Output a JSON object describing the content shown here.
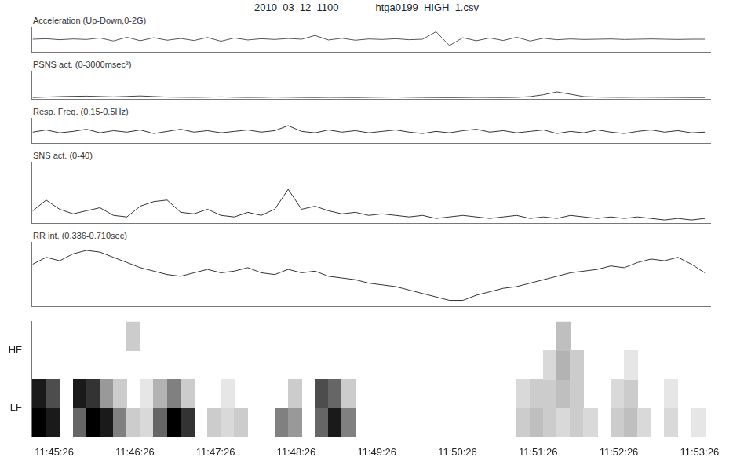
{
  "title": "2010_03_12_1100_         _htga0199_HIGH_1.csv",
  "chart_data": [
    {
      "type": "line",
      "title": "Acceleration (Up-Down,0-2G)",
      "color": "#555555",
      "tick_labels": false,
      "xlim": [
        42309,
        42814
      ],
      "ylim": [
        0,
        2
      ],
      "x": [
        42310,
        42320,
        42330,
        42340,
        42350,
        42360,
        42370,
        42380,
        42390,
        42400,
        42410,
        42420,
        42430,
        42440,
        42450,
        42460,
        42470,
        42480,
        42490,
        42500,
        42510,
        42520,
        42530,
        42540,
        42550,
        42560,
        42570,
        42580,
        42590,
        42600,
        42610,
        42620,
        42630,
        42640,
        42650,
        42660,
        42670,
        42680,
        42690,
        42700,
        42710,
        42720,
        42730,
        42740,
        42750,
        42760,
        42770,
        42780,
        42790,
        42800,
        42810
      ],
      "values": [
        1.0,
        1.04,
        0.96,
        1.02,
        0.98,
        1.1,
        0.86,
        1.16,
        0.88,
        1.12,
        0.92,
        1.06,
        0.9,
        1.14,
        0.84,
        1.1,
        0.94,
        1.04,
        0.98,
        1.06,
        1.0,
        1.3,
        0.94,
        1.08,
        0.92,
        1.02,
        0.98,
        1.04,
        0.96,
        1.0,
        1.6,
        0.5,
        1.12,
        0.88,
        1.1,
        0.9,
        1.16,
        0.86,
        1.08,
        0.96,
        1.02,
        0.98,
        1.0,
        1.02,
        0.98,
        1.0,
        1.02,
        1.0,
        0.98,
        1.0,
        1.0
      ]
    },
    {
      "type": "line",
      "title": "PSNS act. (0-3000msec²)",
      "color": "#444444",
      "tick_labels": false,
      "xlim": [
        42309,
        42814
      ],
      "ylim": [
        0,
        3000
      ],
      "x": [
        42310,
        42320,
        42330,
        42340,
        42350,
        42360,
        42370,
        42380,
        42390,
        42400,
        42410,
        42420,
        42430,
        42440,
        42450,
        42460,
        42470,
        42480,
        42490,
        42500,
        42510,
        42520,
        42530,
        42540,
        42550,
        42560,
        42570,
        42580,
        42590,
        42600,
        42610,
        42620,
        42630,
        42640,
        42650,
        42660,
        42670,
        42680,
        42690,
        42700,
        42710,
        42720,
        42730,
        42740,
        42750,
        42760,
        42770,
        42780,
        42790,
        42800,
        42810
      ],
      "values": [
        150,
        200,
        250,
        280,
        300,
        260,
        220,
        270,
        320,
        260,
        200,
        180,
        170,
        190,
        220,
        180,
        160,
        170,
        200,
        180,
        160,
        150,
        170,
        160,
        150,
        170,
        190,
        210,
        180,
        160,
        150,
        140,
        150,
        170,
        160,
        150,
        170,
        250,
        450,
        750,
        500,
        250,
        200,
        180,
        170,
        190,
        180,
        170,
        160,
        150,
        150
      ]
    },
    {
      "type": "line",
      "title": "Resp. Freq. (0.15-0.5Hz)",
      "color": "#333333",
      "tick_labels": false,
      "xlim": [
        42309,
        42814
      ],
      "ylim": [
        0.15,
        0.5
      ],
      "x": [
        42310,
        42320,
        42330,
        42340,
        42350,
        42360,
        42370,
        42380,
        42390,
        42400,
        42410,
        42420,
        42430,
        42440,
        42450,
        42460,
        42470,
        42480,
        42490,
        42500,
        42510,
        42520,
        42530,
        42540,
        42550,
        42560,
        42570,
        42580,
        42590,
        42600,
        42610,
        42620,
        42630,
        42640,
        42650,
        42660,
        42670,
        42680,
        42690,
        42700,
        42710,
        42720,
        42730,
        42740,
        42750,
        42760,
        42770,
        42780,
        42790,
        42800,
        42810
      ],
      "values": [
        0.3,
        0.33,
        0.29,
        0.31,
        0.34,
        0.29,
        0.32,
        0.3,
        0.33,
        0.28,
        0.31,
        0.34,
        0.3,
        0.32,
        0.29,
        0.31,
        0.33,
        0.3,
        0.32,
        0.39,
        0.31,
        0.29,
        0.33,
        0.3,
        0.32,
        0.29,
        0.31,
        0.33,
        0.3,
        0.28,
        0.31,
        0.29,
        0.32,
        0.34,
        0.3,
        0.32,
        0.29,
        0.31,
        0.33,
        0.28,
        0.31,
        0.29,
        0.33,
        0.3,
        0.28,
        0.31,
        0.33,
        0.3,
        0.32,
        0.29,
        0.3
      ]
    },
    {
      "type": "line",
      "title": "SNS act. (0-40)",
      "color": "#333333",
      "tick_labels": false,
      "xlim": [
        42309,
        42814
      ],
      "ylim": [
        0,
        40
      ],
      "x": [
        42310,
        42320,
        42330,
        42340,
        42350,
        42360,
        42370,
        42380,
        42390,
        42400,
        42410,
        42420,
        42430,
        42440,
        42450,
        42460,
        42470,
        42480,
        42490,
        42500,
        42510,
        42520,
        42530,
        42540,
        42550,
        42560,
        42570,
        42580,
        42590,
        42600,
        42610,
        42620,
        42630,
        42640,
        42650,
        42660,
        42670,
        42680,
        42690,
        42700,
        42710,
        42720,
        42730,
        42740,
        42750,
        42760,
        42770,
        42780,
        42790,
        42800,
        42810
      ],
      "values": [
        8,
        15,
        9,
        6,
        8,
        10,
        5,
        4,
        11,
        14,
        15,
        7,
        6,
        9,
        5,
        4,
        7,
        5,
        9,
        22,
        9,
        11,
        8,
        6,
        7,
        5,
        6,
        5,
        4,
        5,
        3,
        4,
        5,
        4,
        3,
        4,
        5,
        3,
        4,
        3,
        5,
        4,
        3,
        4,
        3,
        4,
        3,
        2,
        3,
        2,
        3
      ]
    },
    {
      "type": "line",
      "title": "RR int. (0.336-0.710sec)",
      "color": "#333333",
      "tick_labels": false,
      "xlim": [
        42309,
        42814
      ],
      "ylim": [
        0.336,
        0.71
      ],
      "x": [
        42310,
        42320,
        42330,
        42340,
        42350,
        42360,
        42370,
        42380,
        42390,
        42400,
        42410,
        42420,
        42430,
        42440,
        42450,
        42460,
        42470,
        42480,
        42490,
        42500,
        42510,
        42520,
        42530,
        42540,
        42550,
        42560,
        42570,
        42580,
        42590,
        42600,
        42610,
        42620,
        42630,
        42640,
        42650,
        42660,
        42670,
        42680,
        42690,
        42700,
        42710,
        42720,
        42730,
        42740,
        42750,
        42760,
        42770,
        42780,
        42790,
        42800,
        42810
      ],
      "values": [
        0.58,
        0.62,
        0.6,
        0.64,
        0.66,
        0.65,
        0.62,
        0.59,
        0.56,
        0.54,
        0.52,
        0.51,
        0.53,
        0.55,
        0.53,
        0.54,
        0.56,
        0.53,
        0.52,
        0.55,
        0.53,
        0.54,
        0.51,
        0.5,
        0.49,
        0.47,
        0.46,
        0.45,
        0.43,
        0.41,
        0.39,
        0.37,
        0.37,
        0.4,
        0.42,
        0.44,
        0.45,
        0.47,
        0.49,
        0.51,
        0.53,
        0.54,
        0.55,
        0.57,
        0.56,
        0.59,
        0.61,
        0.6,
        0.62,
        0.58,
        0.53
      ]
    },
    {
      "type": "heatmap",
      "color": "#000000",
      "xlim": [
        42309,
        42814
      ],
      "xticks": [
        {
          "value": 42326,
          "label": "11:45:26"
        },
        {
          "value": 42386,
          "label": "11:46:26"
        },
        {
          "value": 42446,
          "label": "11:47:26"
        },
        {
          "value": 42506,
          "label": "11:48:26"
        },
        {
          "value": 42566,
          "label": "11:49:26"
        },
        {
          "value": 42626,
          "label": "11:50:26"
        },
        {
          "value": 42686,
          "label": "11:51:26"
        },
        {
          "value": 42746,
          "label": "11:52:26"
        },
        {
          "value": 42806,
          "label": "11:53:26"
        }
      ],
      "ylim": [
        0,
        4
      ],
      "yticks": [
        {
          "value": 1,
          "label": "LF"
        },
        {
          "value": 3,
          "label": "HF"
        }
      ],
      "cells": [
        [
          42310,
          0,
          1.0
        ],
        [
          42310,
          1,
          0.9
        ],
        [
          42320,
          0,
          0.9
        ],
        [
          42320,
          1,
          0.7
        ],
        [
          42340,
          0,
          0.6
        ],
        [
          42340,
          1,
          0.9
        ],
        [
          42350,
          0,
          1.0
        ],
        [
          42350,
          1,
          0.8
        ],
        [
          42360,
          0,
          0.9
        ],
        [
          42360,
          1,
          0.4
        ],
        [
          42370,
          0,
          0.5
        ],
        [
          42370,
          1,
          0.2
        ],
        [
          42380,
          0,
          0.2
        ],
        [
          42380,
          3,
          0.2
        ],
        [
          42390,
          0,
          0.15
        ],
        [
          42390,
          1,
          0.1
        ],
        [
          42400,
          0,
          0.6
        ],
        [
          42400,
          1,
          0.3
        ],
        [
          42410,
          0,
          1.0
        ],
        [
          42410,
          1,
          0.5
        ],
        [
          42420,
          0,
          0.8
        ],
        [
          42420,
          1,
          0.2
        ],
        [
          42440,
          0,
          0.2
        ],
        [
          42450,
          0,
          0.15
        ],
        [
          42450,
          1,
          0.1
        ],
        [
          42460,
          0,
          0.2
        ],
        [
          42490,
          0,
          0.5
        ],
        [
          42500,
          0,
          0.4
        ],
        [
          42500,
          1,
          0.2
        ],
        [
          42520,
          0,
          0.6
        ],
        [
          42520,
          1,
          0.7
        ],
        [
          42530,
          0,
          0.9
        ],
        [
          42530,
          1,
          0.6
        ],
        [
          42540,
          0,
          0.5
        ],
        [
          42540,
          1,
          0.2
        ],
        [
          42670,
          0,
          0.2
        ],
        [
          42670,
          1,
          0.15
        ],
        [
          42680,
          0,
          0.25
        ],
        [
          42680,
          1,
          0.2
        ],
        [
          42690,
          0,
          0.2
        ],
        [
          42690,
          1,
          0.2
        ],
        [
          42690,
          2,
          0.15
        ],
        [
          42700,
          0,
          0.15
        ],
        [
          42700,
          1,
          0.25
        ],
        [
          42700,
          2,
          0.3
        ],
        [
          42700,
          3,
          0.25
        ],
        [
          42710,
          0,
          0.2
        ],
        [
          42710,
          1,
          0.2
        ],
        [
          42710,
          2,
          0.2
        ],
        [
          42720,
          0,
          0.15
        ],
        [
          42740,
          0,
          0.2
        ],
        [
          42740,
          1,
          0.15
        ],
        [
          42750,
          0,
          0.25
        ],
        [
          42750,
          1,
          0.2
        ],
        [
          42750,
          2,
          0.1
        ],
        [
          42760,
          0,
          0.15
        ],
        [
          42780,
          0,
          0.15
        ],
        [
          42780,
          1,
          0.1
        ],
        [
          42800,
          0,
          0.1
        ]
      ]
    }
  ]
}
